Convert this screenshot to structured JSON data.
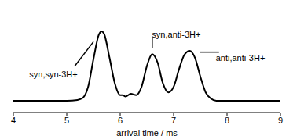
{
  "chart_data": {
    "type": "line",
    "x_label": "arrival time / ms",
    "x": [
      4.0,
      4.5,
      5.0,
      5.2,
      5.3,
      5.4,
      5.5,
      5.6,
      5.65,
      5.7,
      5.8,
      5.9,
      6.0,
      6.05,
      6.1,
      6.2,
      6.3,
      6.4,
      6.5,
      6.6,
      6.7,
      6.8,
      6.9,
      7.0,
      7.1,
      7.2,
      7.3,
      7.4,
      7.5,
      7.6,
      7.7,
      7.8,
      8.0,
      8.5,
      9.0
    ],
    "values": [
      0,
      0,
      0,
      0.01,
      0.04,
      0.2,
      0.6,
      0.95,
      1.0,
      0.96,
      0.62,
      0.25,
      0.08,
      0.08,
      0.06,
      0.1,
      0.08,
      0.2,
      0.5,
      0.67,
      0.55,
      0.25,
      0.12,
      0.2,
      0.45,
      0.66,
      0.72,
      0.62,
      0.35,
      0.12,
      0.03,
      0,
      0,
      0,
      0
    ],
    "color": "#000000",
    "xlim": [
      4,
      9
    ],
    "xticks": [
      4,
      5,
      6,
      7,
      8,
      9
    ],
    "ylim": [
      -0.17,
      1.0
    ],
    "tick_labels": "x",
    "grid": false,
    "annotations": [
      "syn,syn-3H+",
      "syn,anti-3H+",
      "anti,anti-3H+"
    ]
  }
}
